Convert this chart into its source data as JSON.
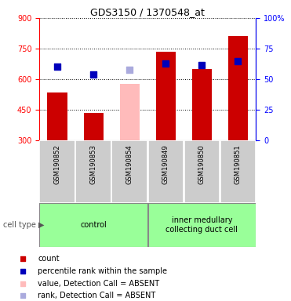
{
  "title": "GDS3150 / 1370548_at",
  "samples": [
    "GSM190852",
    "GSM190853",
    "GSM190854",
    "GSM190849",
    "GSM190850",
    "GSM190851"
  ],
  "count_values": [
    535,
    435,
    null,
    735,
    650,
    810
  ],
  "count_absent_values": [
    null,
    null,
    575,
    null,
    null,
    null
  ],
  "percentile_values": [
    660,
    622,
    null,
    678,
    668,
    688
  ],
  "percentile_absent_values": [
    null,
    null,
    645,
    null,
    null,
    null
  ],
  "ylim_left": [
    300,
    900
  ],
  "ylim_right": [
    0,
    100
  ],
  "yticks_left": [
    300,
    450,
    600,
    750,
    900
  ],
  "yticks_right": [
    0,
    25,
    50,
    75,
    100
  ],
  "yticklabels_right": [
    "0",
    "25",
    "50",
    "75",
    "100%"
  ],
  "bar_color_red": "#cc0000",
  "bar_color_pink": "#ffbbbb",
  "dot_color_blue": "#0000bb",
  "dot_color_light_blue": "#aaaadd",
  "control_label": "control",
  "treatment_label": "inner medullary\ncollecting duct cell",
  "group_color_green": "#99ff99",
  "legend_items": [
    {
      "color": "#cc0000",
      "label": "count",
      "marker": "s"
    },
    {
      "color": "#0000bb",
      "label": "percentile rank within the sample",
      "marker": "s"
    },
    {
      "color": "#ffbbbb",
      "label": "value, Detection Call = ABSENT",
      "marker": "s"
    },
    {
      "color": "#aaaadd",
      "label": "rank, Detection Call = ABSENT",
      "marker": "s"
    }
  ],
  "cell_type_label": "cell type",
  "bar_width": 0.55,
  "dot_size": 30,
  "gray_box_color": "#cccccc",
  "gray_box_edge": "#999999",
  "title_fontsize": 9,
  "tick_fontsize": 7,
  "sample_fontsize": 6,
  "group_fontsize": 7,
  "legend_fontsize": 7
}
